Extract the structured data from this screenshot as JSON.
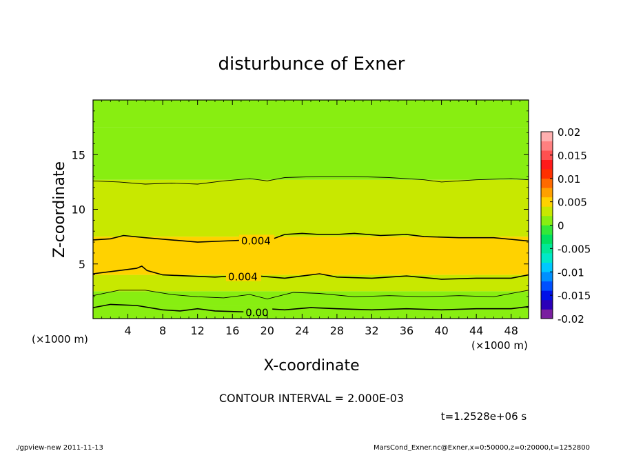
{
  "chart_data": {
    "type": "heatmap",
    "title": "disturbunce of Exner",
    "xlabel": "X-coordinate",
    "ylabel": "Z-coordinate",
    "x_unit": "(×1000 m)",
    "y_unit": "(×1000 m)",
    "xlim": [
      0,
      50
    ],
    "ylim": [
      0,
      20
    ],
    "x_ticks": [
      4,
      8,
      12,
      16,
      20,
      24,
      28,
      32,
      36,
      40,
      44,
      48
    ],
    "y_ticks": [
      5,
      10,
      15
    ],
    "contour_interval_text": "CONTOUR INTERVAL = 2.000E-03",
    "time_text": "t=1.2528e+06 s",
    "colorbar": {
      "ticks": [
        "0.02",
        "0.015",
        "0.01",
        "0.005",
        "0",
        "-0.005",
        "-0.01",
        "-0.015",
        "-0.02"
      ],
      "range": [
        -0.02,
        0.02
      ],
      "colors": [
        "#7a1fa0",
        "#2b00b8",
        "#0010e8",
        "#0050ff",
        "#0090ff",
        "#00c8ff",
        "#00e8c8",
        "#00e896",
        "#00e060",
        "#33e838",
        "#88ee11",
        "#c8e800",
        "#ffd200",
        "#ffa000",
        "#ff6a00",
        "#ff3000",
        "#ff1a1a",
        "#ff5050",
        "#ff8080",
        "#ffb0b0"
      ]
    },
    "field_bands": [
      {
        "z": [
          0,
          1.2
        ],
        "value": 0.001
      },
      {
        "z": [
          1.2,
          2.5
        ],
        "value": 0.002
      },
      {
        "z": [
          2.5,
          4.0
        ],
        "value": 0.003
      },
      {
        "z": [
          4.0,
          7.5
        ],
        "value": 0.0045
      },
      {
        "z": [
          7.5,
          10.0
        ],
        "value": 0.0035
      },
      {
        "z": [
          10.0,
          12.7
        ],
        "value": 0.0025
      },
      {
        "z": [
          12.7,
          17.5
        ],
        "value": 0.0015
      },
      {
        "z": [
          17.5,
          20.0
        ],
        "value": 0.0008
      }
    ],
    "contours": [
      {
        "level": 0.0,
        "label": "0.00",
        "label_x": 17.5,
        "points": [
          [
            0,
            1.0
          ],
          [
            2,
            1.3
          ],
          [
            5,
            1.2
          ],
          [
            8,
            0.8
          ],
          [
            10,
            0.7
          ],
          [
            12,
            0.9
          ],
          [
            14,
            0.7
          ],
          [
            18,
            0.6
          ],
          [
            20,
            0.9
          ],
          [
            22,
            0.8
          ],
          [
            25,
            1.0
          ],
          [
            28,
            0.9
          ],
          [
            32,
            0.8
          ],
          [
            36,
            0.9
          ],
          [
            40,
            0.8
          ],
          [
            44,
            0.9
          ],
          [
            48,
            0.9
          ],
          [
            50,
            1.1
          ]
        ]
      },
      {
        "level": 0.002,
        "label": "",
        "points": [
          [
            0,
            2.1
          ],
          [
            3,
            2.6
          ],
          [
            6,
            2.6
          ],
          [
            9,
            2.2
          ],
          [
            12,
            2.0
          ],
          [
            15,
            1.9
          ],
          [
            18,
            2.2
          ],
          [
            20,
            1.8
          ],
          [
            23,
            2.4
          ],
          [
            26,
            2.3
          ],
          [
            30,
            2.0
          ],
          [
            34,
            2.1
          ],
          [
            38,
            2.0
          ],
          [
            42,
            2.1
          ],
          [
            46,
            2.0
          ],
          [
            50,
            2.6
          ]
        ]
      },
      {
        "level": 0.004,
        "label": "0.004",
        "label_x": 15.5,
        "points": [
          [
            0,
            4.1
          ],
          [
            3,
            4.4
          ],
          [
            5,
            4.6
          ],
          [
            5.6,
            4.8
          ],
          [
            6.2,
            4.4
          ],
          [
            8,
            4.0
          ],
          [
            11,
            3.9
          ],
          [
            14,
            3.8
          ],
          [
            16,
            3.9
          ],
          [
            19,
            3.9
          ],
          [
            22,
            3.7
          ],
          [
            24,
            3.9
          ],
          [
            26,
            4.1
          ],
          [
            28,
            3.8
          ],
          [
            32,
            3.7
          ],
          [
            36,
            3.9
          ],
          [
            40,
            3.6
          ],
          [
            44,
            3.7
          ],
          [
            48,
            3.7
          ],
          [
            50,
            4.0
          ]
        ]
      },
      {
        "level": 0.004,
        "label": "0.004",
        "label_x": 17.0,
        "points": [
          [
            0,
            7.2
          ],
          [
            2,
            7.3
          ],
          [
            3.5,
            7.6
          ],
          [
            6,
            7.4
          ],
          [
            9,
            7.2
          ],
          [
            12,
            7.0
          ],
          [
            15,
            7.1
          ],
          [
            18,
            7.2
          ],
          [
            20,
            7.1
          ],
          [
            22,
            7.7
          ],
          [
            24,
            7.8
          ],
          [
            26,
            7.7
          ],
          [
            28,
            7.7
          ],
          [
            30,
            7.8
          ],
          [
            33,
            7.6
          ],
          [
            36,
            7.7
          ],
          [
            38,
            7.5
          ],
          [
            42,
            7.4
          ],
          [
            46,
            7.4
          ],
          [
            50,
            7.1
          ]
        ]
      },
      {
        "level": 0.002,
        "label": "",
        "points": [
          [
            0,
            12.6
          ],
          [
            3,
            12.5
          ],
          [
            6,
            12.3
          ],
          [
            9,
            12.4
          ],
          [
            12,
            12.3
          ],
          [
            15,
            12.6
          ],
          [
            18,
            12.8
          ],
          [
            20,
            12.6
          ],
          [
            22,
            12.9
          ],
          [
            26,
            13.0
          ],
          [
            30,
            13.0
          ],
          [
            34,
            12.9
          ],
          [
            38,
            12.7
          ],
          [
            40,
            12.5
          ],
          [
            44,
            12.7
          ],
          [
            48,
            12.8
          ],
          [
            50,
            12.7
          ]
        ]
      }
    ]
  },
  "footer": {
    "left": "./gpview-new   2011-11-13",
    "right": "MarsCond_Exner.nc@Exner,x=0:50000,z=0:20000,t=1252800"
  }
}
